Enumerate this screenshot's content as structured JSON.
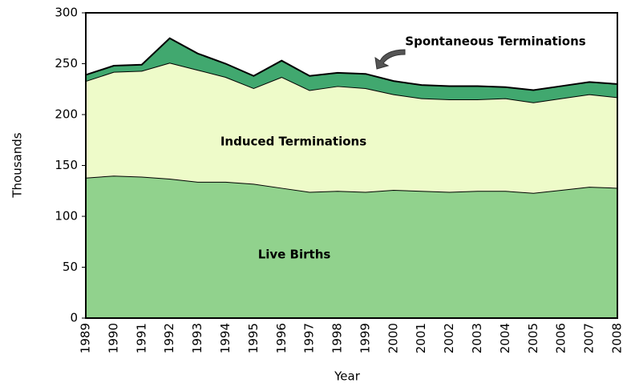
{
  "chart_data": {
    "type": "stacked_area",
    "x_label": "Year",
    "y_label": "Thousands",
    "categories": [
      "1989",
      "1990",
      "1991",
      "1992",
      "1993",
      "1994",
      "1995",
      "1996",
      "1997",
      "1998",
      "1999",
      "2000",
      "2001",
      "2002",
      "2003",
      "2004",
      "2005",
      "2006",
      "2007",
      "2008"
    ],
    "series": [
      {
        "name": "Live Births",
        "color": "#91d28d",
        "values": [
          138,
          140,
          139,
          137,
          134,
          134,
          132,
          128,
          124,
          125,
          124,
          126,
          125,
          124,
          125,
          125,
          123,
          126,
          129,
          128
        ]
      },
      {
        "name": "Induced Terminations",
        "color": "#eefbc9",
        "values": [
          95,
          102,
          104,
          114,
          110,
          103,
          94,
          109,
          100,
          103,
          102,
          94,
          91,
          91,
          90,
          91,
          89,
          90,
          91,
          89
        ]
      },
      {
        "name": "Spontaneous Terminations",
        "color": "#41a86f",
        "values": [
          6,
          6,
          6,
          24,
          16,
          13,
          12,
          16,
          14,
          13,
          14,
          13,
          13,
          13,
          13,
          11,
          12,
          12,
          12,
          13
        ]
      }
    ],
    "ylim": [
      0,
      300
    ],
    "yticks": [
      0,
      50,
      100,
      150,
      200,
      250,
      300
    ]
  }
}
